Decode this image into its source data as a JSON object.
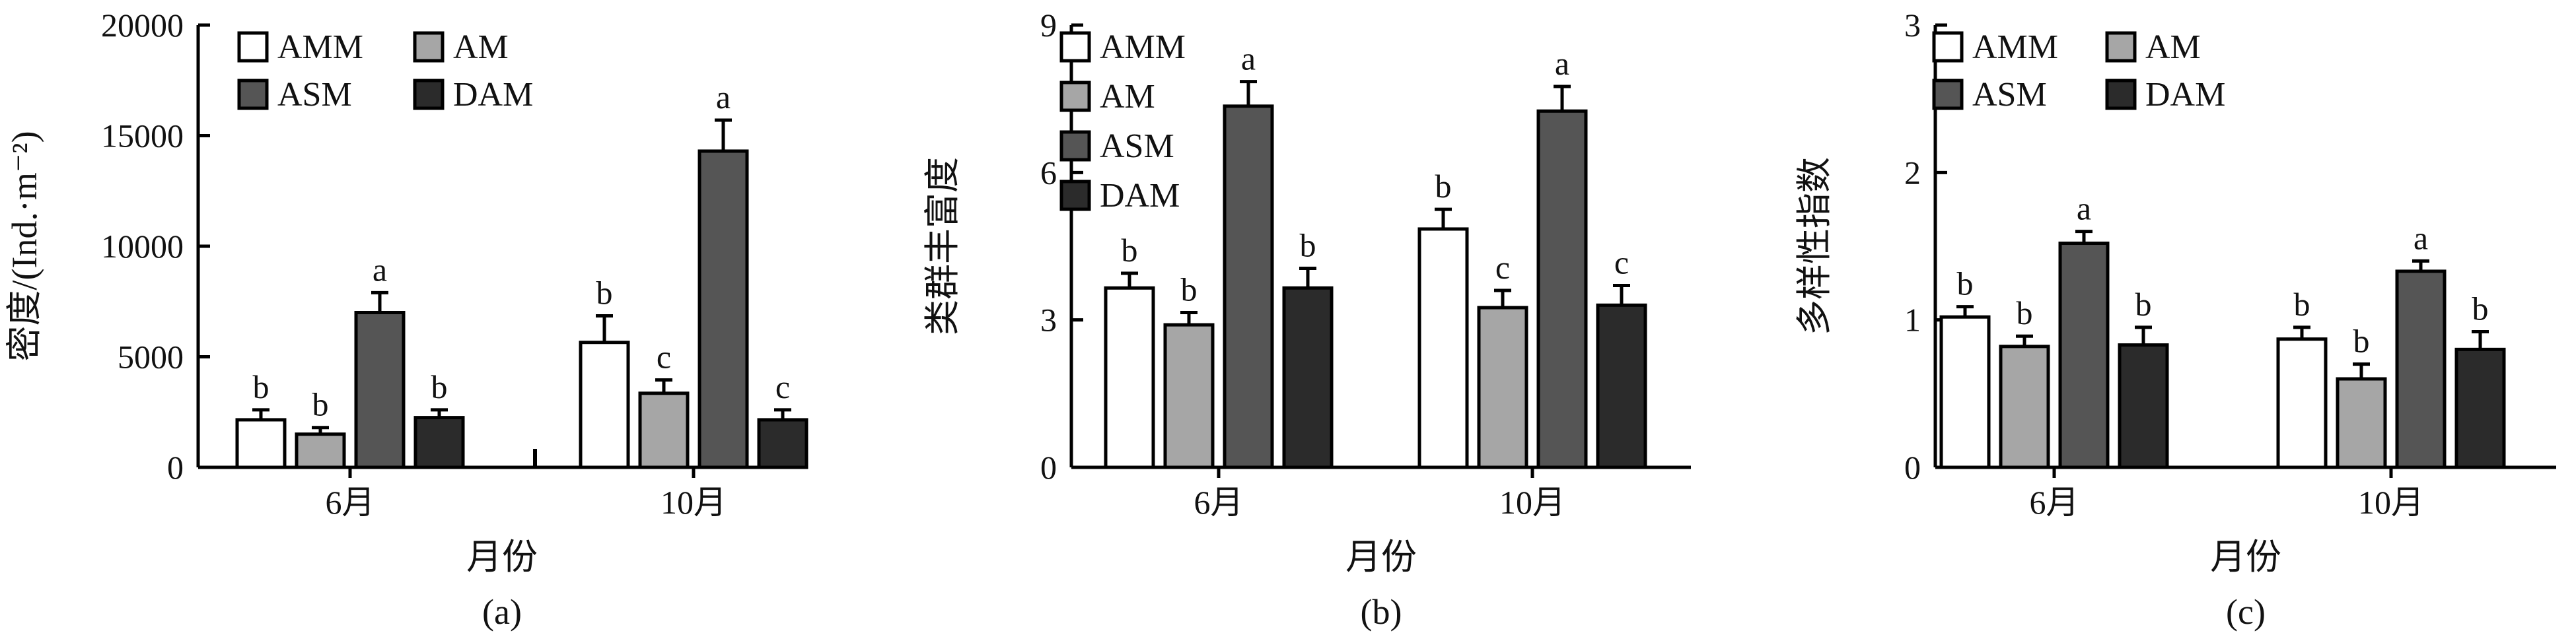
{
  "colors": {
    "AMM": "#ffffff",
    "AM": "#a6a6a6",
    "ASM": "#555555",
    "DAM": "#2b2b2b",
    "axis": "#000000"
  },
  "chart_data": [
    {
      "type": "bar",
      "panel_label": "(a)",
      "xlabel": "月份",
      "ylabel": "密度/(Ind.·m⁻²)",
      "categories": [
        "6月",
        "10月"
      ],
      "ylim": [
        0,
        20000
      ],
      "yticks": [
        0,
        5000,
        10000,
        15000,
        20000
      ],
      "legend": {
        "position": "top-left",
        "columns": 2
      },
      "series": [
        {
          "name": "AMM",
          "values": [
            2150,
            5650
          ],
          "errors": [
            450,
            1200
          ],
          "labels": [
            "b",
            "b"
          ]
        },
        {
          "name": "AM",
          "values": [
            1500,
            3350
          ],
          "errors": [
            300,
            600
          ],
          "labels": [
            "b",
            "c"
          ]
        },
        {
          "name": "ASM",
          "values": [
            7000,
            14300
          ],
          "errors": [
            900,
            1400
          ],
          "labels": [
            "a",
            "a"
          ]
        },
        {
          "name": "DAM",
          "values": [
            2250,
            2150
          ],
          "errors": [
            350,
            450
          ],
          "labels": [
            "b",
            "c"
          ]
        }
      ]
    },
    {
      "type": "bar",
      "panel_label": "(b)",
      "xlabel": "月份",
      "ylabel": "类群丰富度",
      "categories": [
        "6月",
        "10月"
      ],
      "ylim": [
        0,
        9
      ],
      "yticks": [
        0,
        3,
        6,
        9
      ],
      "legend": {
        "position": "top-left",
        "columns": 1
      },
      "series": [
        {
          "name": "AMM",
          "values": [
            3.65,
            4.85
          ],
          "errors": [
            0.3,
            0.4
          ],
          "labels": [
            "b",
            "b"
          ]
        },
        {
          "name": "AM",
          "values": [
            2.9,
            3.25
          ],
          "errors": [
            0.25,
            0.35
          ],
          "labels": [
            "b",
            "c"
          ]
        },
        {
          "name": "ASM",
          "values": [
            7.35,
            7.25
          ],
          "errors": [
            0.5,
            0.5
          ],
          "labels": [
            "a",
            "a"
          ]
        },
        {
          "name": "DAM",
          "values": [
            3.65,
            3.3
          ],
          "errors": [
            0.4,
            0.4
          ],
          "labels": [
            "b",
            "c"
          ]
        }
      ]
    },
    {
      "type": "bar",
      "panel_label": "(c)",
      "xlabel": "月份",
      "ylabel": "多样性指数",
      "categories": [
        "6月",
        "10月"
      ],
      "ylim": [
        0,
        3
      ],
      "yticks": [
        0,
        1,
        2,
        3
      ],
      "legend": {
        "position": "top-left",
        "columns": 2
      },
      "series": [
        {
          "name": "AMM",
          "values": [
            1.02,
            0.87
          ],
          "errors": [
            0.07,
            0.08
          ],
          "labels": [
            "b",
            "b"
          ]
        },
        {
          "name": "AM",
          "values": [
            0.82,
            0.6
          ],
          "errors": [
            0.07,
            0.1
          ],
          "labels": [
            "b",
            "b"
          ]
        },
        {
          "name": "ASM",
          "values": [
            1.52,
            1.33
          ],
          "errors": [
            0.08,
            0.07
          ],
          "labels": [
            "a",
            "a"
          ]
        },
        {
          "name": "DAM",
          "values": [
            0.83,
            0.8
          ],
          "errors": [
            0.12,
            0.12
          ],
          "labels": [
            "b",
            "b"
          ]
        }
      ]
    }
  ]
}
